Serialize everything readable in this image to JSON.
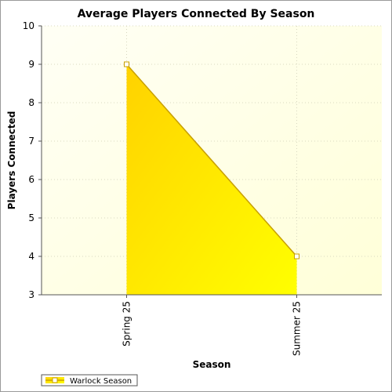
{
  "chart_data": {
    "type": "area",
    "title": "Average Players Connected By Season",
    "xlabel": "Season",
    "ylabel": "Players Connected",
    "categories": [
      "Spring 25",
      "Summer 25"
    ],
    "series": [
      {
        "name": "Warlock Season",
        "values": [
          9,
          4
        ]
      }
    ],
    "ylim": [
      3,
      10
    ],
    "yticks": [
      3,
      4,
      5,
      6,
      7,
      8,
      9,
      10
    ],
    "grid": true,
    "legend_position": "bottom-left",
    "colors": {
      "fill_top": "#ffd200",
      "fill_bottom": "#ffff00",
      "line": "#c8a000",
      "marker_fill": "#ffffff",
      "marker_stroke": "#c8a000",
      "plot_bg_light": "#fffff5",
      "plot_bg_dark": "#ffffd8",
      "grid": "#d8d8c0"
    }
  }
}
